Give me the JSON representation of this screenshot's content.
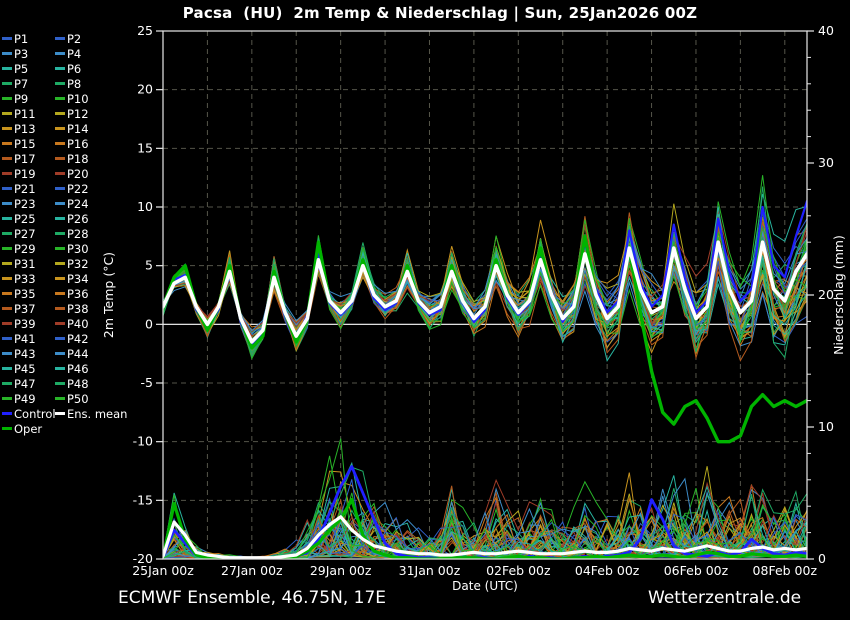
{
  "title": "Pacsa  (HU)  2m Temp & Niederschlag | Sun, 25Jan2026 00Z",
  "footer": {
    "left": "ECMWF Ensemble, 46.75N, 17E",
    "right": "Wetterzentrale.de"
  },
  "colors": {
    "background": "#000000",
    "text": "#ffffff",
    "grid": "#55554a",
    "axis": "#e8e8e8",
    "zero_line": "#ffffff",
    "ens_mean": "#ffffff",
    "oper": "#00b400",
    "control": "#2020ff",
    "member_rows": [
      "#3060c8",
      "#3c8cc8",
      "#28b4a0",
      "#1eaa64",
      "#28b428",
      "#b4a81e",
      "#c8941e",
      "#c8781e",
      "#b45a1e",
      "#a03c28"
    ]
  },
  "legend": {
    "member_prefix": "P",
    "member_count": 50,
    "special": [
      {
        "label": "Control",
        "color_key": "control"
      },
      {
        "label": "Ens. mean",
        "color_key": "ens_mean"
      },
      {
        "label": "Oper",
        "color_key": "oper"
      }
    ]
  },
  "chart_data": {
    "type": "line",
    "title": "Pacsa  (HU)  2m Temp & Niederschlag | Sun, 25Jan2026 00Z",
    "xlabel": "Date (UTC)",
    "ylabel_left": "2m Temp (°C)",
    "ylabel_right": "Niederschlag (mm)",
    "ylim_left": [
      -20,
      25
    ],
    "ylim_right": [
      0,
      40
    ],
    "grid": true,
    "legend_position": "left",
    "x_start_label": "25Jan 00z",
    "x_hours_step": 6,
    "x_total_days": 14.5,
    "x_gridline_every_days": 1,
    "x_tick_every_days": 2,
    "x_tick_labels": [
      "25Jan 00z",
      "27Jan 00z",
      "29Jan 00z",
      "31Jan 00z",
      "02Feb 00z",
      "04Feb 00z",
      "06Feb 00z",
      "08Feb 00z"
    ],
    "left_ticks": [
      25,
      20,
      15,
      10,
      5,
      0,
      -5,
      -10,
      -15,
      -20
    ],
    "right_ticks": [
      40,
      30,
      20,
      10,
      0
    ],
    "right_minor_tick_step": 2,
    "series": {
      "ens_mean_temp": [
        1.5,
        3.5,
        4.0,
        1.5,
        0.0,
        1.5,
        4.5,
        0.5,
        -1.5,
        -0.5,
        4.0,
        1.0,
        -1.0,
        0.5,
        5.5,
        2.0,
        1.0,
        2.0,
        5.0,
        2.5,
        1.5,
        2.0,
        4.5,
        2.0,
        1.0,
        1.5,
        4.5,
        2.0,
        0.5,
        1.5,
        5.0,
        2.5,
        1.0,
        2.0,
        5.5,
        2.5,
        0.5,
        1.5,
        6.0,
        2.5,
        0.5,
        1.5,
        6.5,
        3.0,
        1.0,
        1.5,
        6.5,
        3.0,
        0.5,
        1.5,
        7.0,
        3.0,
        1.0,
        2.0,
        7.0,
        3.0,
        2.0,
        4.5,
        6.0
      ],
      "oper_temp": [
        1.5,
        4.0,
        5.0,
        1.5,
        -0.5,
        1.5,
        5.0,
        0.5,
        -2.0,
        -1.0,
        4.5,
        1.0,
        -1.5,
        0.5,
        7.0,
        2.0,
        1.0,
        2.0,
        5.5,
        2.5,
        1.5,
        2.0,
        5.0,
        2.0,
        1.0,
        1.5,
        5.0,
        2.0,
        0.5,
        1.5,
        5.5,
        2.5,
        1.0,
        2.0,
        6.5,
        2.5,
        0.5,
        1.5,
        7.5,
        2.5,
        0.5,
        1.5,
        6.5,
        1.0,
        -4.0,
        -7.5,
        -8.5,
        -7.0,
        -6.5,
        -8.0,
        -10.0,
        -10.0,
        -9.5,
        -7.0,
        -6.0,
        -7.0,
        -6.5,
        -7.0,
        -6.5
      ],
      "control_temp": [
        1.5,
        3.8,
        4.2,
        1.2,
        -0.3,
        1.2,
        4.8,
        0.2,
        -1.8,
        -0.8,
        4.2,
        0.8,
        -1.2,
        0.8,
        6.0,
        1.8,
        0.8,
        1.8,
        5.2,
        2.2,
        1.2,
        1.8,
        4.8,
        1.8,
        0.8,
        1.2,
        4.8,
        1.8,
        0.2,
        1.2,
        5.5,
        2.2,
        0.8,
        1.8,
        6.0,
        2.8,
        0.2,
        1.8,
        7.0,
        3.0,
        1.0,
        2.0,
        8.0,
        3.5,
        1.5,
        2.5,
        8.5,
        4.0,
        1.0,
        2.0,
        9.0,
        4.5,
        2.0,
        3.0,
        10.0,
        5.0,
        4.0,
        7.5,
        10.5
      ],
      "ens_mean_precip": [
        0.2,
        2.8,
        1.8,
        0.5,
        0.3,
        0.2,
        0.1,
        0.1,
        0.1,
        0.1,
        0.1,
        0.2,
        0.3,
        0.8,
        1.8,
        2.6,
        3.2,
        2.2,
        1.5,
        1.0,
        0.8,
        0.6,
        0.5,
        0.4,
        0.4,
        0.3,
        0.3,
        0.4,
        0.5,
        0.4,
        0.4,
        0.5,
        0.6,
        0.5,
        0.4,
        0.4,
        0.4,
        0.5,
        0.6,
        0.5,
        0.5,
        0.6,
        0.8,
        0.7,
        0.6,
        0.8,
        0.7,
        0.6,
        0.8,
        1.0,
        0.8,
        0.6,
        0.6,
        0.8,
        0.9,
        0.7,
        0.8,
        0.7,
        0.8
      ],
      "control_precip": [
        0.1,
        2.2,
        1.2,
        0.3,
        0.1,
        0.1,
        0.0,
        0.0,
        0.0,
        0.0,
        0.1,
        0.1,
        0.2,
        0.5,
        1.5,
        3.5,
        5.5,
        7.0,
        5.0,
        3.0,
        1.2,
        0.4,
        0.2,
        0.1,
        0.1,
        0.0,
        0.0,
        0.1,
        0.1,
        0.1,
        0.0,
        0.0,
        0.1,
        0.2,
        0.1,
        0.1,
        0.0,
        0.1,
        0.2,
        0.1,
        0.2,
        0.3,
        0.5,
        1.5,
        4.5,
        3.0,
        1.0,
        0.4,
        0.3,
        0.2,
        0.5,
        0.3,
        0.5,
        1.5,
        0.8,
        0.4,
        0.3,
        0.5,
        0.4
      ],
      "oper_precip": [
        0.1,
        4.2,
        1.5,
        0.3,
        0.1,
        0.0,
        0.0,
        0.0,
        0.0,
        0.0,
        0.1,
        0.1,
        0.2,
        0.6,
        1.2,
        2.2,
        3.0,
        4.5,
        1.8,
        0.6,
        0.3,
        0.1,
        0.1,
        0.0,
        0.0,
        0.0,
        0.1,
        0.1,
        0.1,
        0.0,
        0.0,
        0.1,
        0.2,
        0.1,
        0.1,
        0.0,
        0.0,
        0.1,
        0.1,
        0.2,
        0.1,
        0.2,
        0.3,
        0.2,
        0.2,
        0.3,
        0.2,
        0.1,
        0.3,
        0.5,
        0.4,
        0.2,
        0.2,
        0.4,
        0.3,
        0.2,
        0.2,
        0.3,
        0.2
      ],
      "member_precip_max_envelope": [
        0.5,
        6.5,
        4.0,
        1.5,
        0.8,
        0.5,
        0.4,
        0.3,
        0.3,
        0.3,
        0.5,
        1.0,
        1.5,
        3.5,
        6.5,
        8.5,
        9.5,
        8.5,
        7.0,
        6.0,
        5.0,
        4.0,
        3.5,
        3.0,
        3.0,
        4.0,
        9.0,
        5.0,
        4.0,
        6.0,
        8.0,
        5.0,
        4.0,
        5.0,
        6.0,
        4.5,
        4.0,
        5.0,
        7.0,
        5.0,
        5.0,
        6.0,
        8.0,
        6.0,
        6.0,
        8.0,
        9.0,
        7.0,
        7.0,
        10.0,
        8.0,
        6.0,
        6.0,
        8.0,
        9.0,
        7.0,
        6.0,
        8.0,
        7.0
      ]
    },
    "members": {
      "count": 50,
      "seed": 1337,
      "temp_sigma_start": 0.5,
      "temp_sigma_end": 4.5,
      "diurnal_gain_min": 0.7,
      "diurnal_gain_max": 1.45
    }
  }
}
